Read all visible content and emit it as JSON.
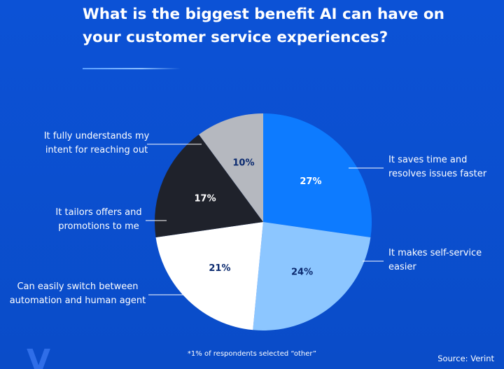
{
  "colors": {
    "background": "#0b4fd0",
    "text": "#ffffff"
  },
  "title": "What is the biggest benefit AI can have on your customer service experiences?",
  "footnote": "*1% of respondents selected “other”",
  "source": "Source: Verint",
  "brand_mark_text": "V",
  "chart_data": {
    "type": "pie",
    "start_angle_deg": 0,
    "direction": "clockwise",
    "slices": [
      {
        "label": "It saves time and\nresolves issues faster",
        "value": 27,
        "value_label": "27%",
        "color": "#0d7bff",
        "value_color": "#ffffff",
        "side": "right"
      },
      {
        "label": "It makes self-service\neasier",
        "value": 24,
        "value_label": "24%",
        "color": "#8cc6ff",
        "value_color": "#0b2a6f",
        "side": "right"
      },
      {
        "label": "Can easily switch between\nautomation and human agent",
        "value": 21,
        "value_label": "21%",
        "color": "#ffffff",
        "value_color": "#0b2a6f",
        "side": "left"
      },
      {
        "label": "It tailors offers and\npromotions to me",
        "value": 17,
        "value_label": "17%",
        "color": "#1f222b",
        "value_color": "#ffffff",
        "side": "left"
      },
      {
        "label": "It fully understands my\nintent for reaching out",
        "value": 10,
        "value_label": "10%",
        "color": "#b5b8bf",
        "value_color": "#0b2a6f",
        "side": "left"
      }
    ]
  }
}
